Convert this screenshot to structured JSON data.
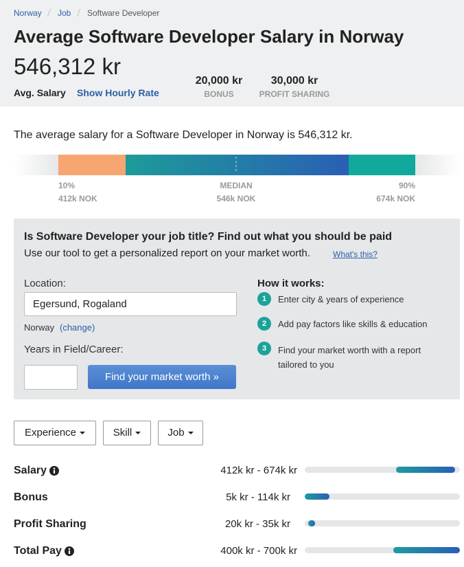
{
  "breadcrumb": [
    "Norway",
    "Job",
    "Software Developer"
  ],
  "header": {
    "title": "Average Software Developer Salary in Norway",
    "salary": "546,312 kr",
    "salary_label": "Avg. Salary",
    "hourly_link": "Show Hourly Rate",
    "extras": [
      {
        "value": "20,000 kr",
        "label": "BONUS"
      },
      {
        "value": "30,000 kr",
        "label": "PROFIT SHARING"
      }
    ]
  },
  "summary": "The average salary for a Software Developer in Norway is 546,312 kr.",
  "percentiles": [
    {
      "label": "10%",
      "value": "412k NOK"
    },
    {
      "label": "MEDIAN",
      "value": "546k NOK"
    },
    {
      "label": "90%",
      "value": "674k NOK"
    }
  ],
  "tool": {
    "heading": "Is Software Developer your job title? Find out what you should be paid",
    "subheading": "Use our tool to get a personalized report on your market worth.",
    "whats_this": "What's this?",
    "location_label": "Location:",
    "location_value": "Egersund, Rogaland",
    "country": "Norway",
    "change": "(change)",
    "years_label": "Years in Field/Career:",
    "button": "Find your market worth »",
    "how_title": "How it works:",
    "steps": [
      {
        "number": "1",
        "text": "Enter city & years of experience"
      },
      {
        "number": "2",
        "text": "Add pay factors like skills & education"
      },
      {
        "number": "3",
        "text": "Find your market worth with a report tailored to you"
      }
    ]
  },
  "filters": [
    "Experience",
    "Skill",
    "Job"
  ],
  "pay": [
    {
      "label": "Salary",
      "range": "412k kr - 674k kr"
    },
    {
      "label": "Bonus",
      "range": "5k kr - 114k kr"
    },
    {
      "label": "Profit Sharing",
      "range": "20k kr - 35k kr"
    },
    {
      "label": "Total Pay",
      "range": "400k kr - 700k kr"
    }
  ]
}
